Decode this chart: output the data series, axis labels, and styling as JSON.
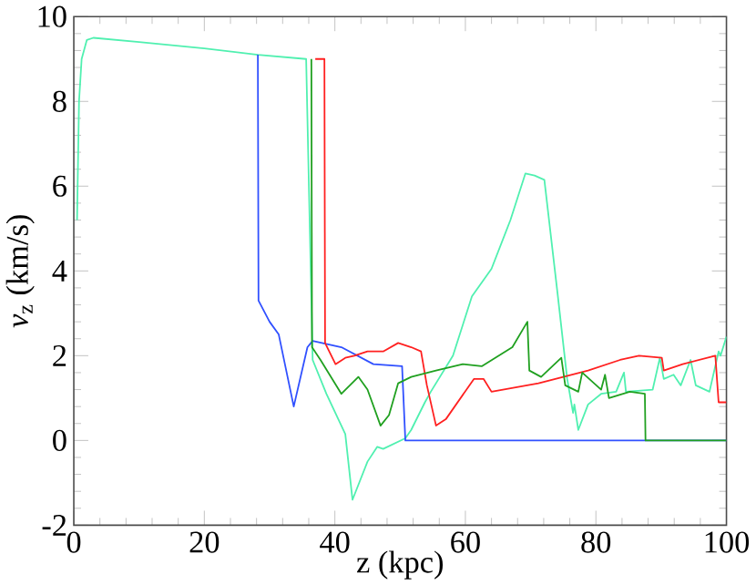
{
  "chart_data": {
    "type": "line",
    "xlabel": "z (kpc)",
    "ylabel": "*v*$_{z}$ (km/s)",
    "xlim": [
      0,
      100
    ],
    "ylim": [
      -2,
      10
    ],
    "xticks": [
      0,
      20,
      40,
      60,
      80,
      100
    ],
    "yticks": [
      -2,
      0,
      2,
      4,
      6,
      8,
      10
    ],
    "grid": false,
    "legend": false,
    "marker": "none",
    "line_style": "solid",
    "series": [
      {
        "color": "#50f0b0",
        "x": [
          0.5,
          0.8,
          1.2,
          2,
          3,
          10,
          20,
          28.2,
          35.6,
          36.6,
          38.7,
          41.6,
          42.7,
          45,
          46.5,
          47.4,
          50.8,
          51.7,
          53.8,
          54.7,
          58.1,
          61,
          64,
          66.9,
          69.2,
          70.6,
          72.1,
          74.1,
          75.6,
          76.5,
          76.7,
          77.3,
          78.8,
          80.8,
          83.1,
          84.3,
          84.6,
          88.7,
          89.8,
          90.4,
          91.9,
          93,
          94.5,
          95.3,
          97.4,
          98.8,
          99.1,
          100
        ],
        "values": [
          5.2,
          8.0,
          9.0,
          9.45,
          9.5,
          9.4,
          9.25,
          9.1,
          9.0,
          1.9,
          1.1,
          0.15,
          -1.4,
          -0.5,
          -0.15,
          -0.2,
          0.05,
          0.25,
          0.9,
          1.15,
          2.0,
          3.4,
          4.05,
          5.2,
          6.3,
          6.25,
          6.15,
          3.5,
          1.45,
          0.65,
          0.85,
          0.25,
          0.85,
          1.1,
          1.15,
          1.6,
          1.15,
          1.2,
          1.95,
          1.45,
          1.55,
          1.3,
          1.9,
          1.3,
          1.15,
          2.1,
          2.0,
          2.45
        ]
      },
      {
        "color": "#3050ff",
        "x": [
          28.2,
          28.3,
          30,
          31.4,
          33.7,
          35.8,
          36.6,
          41,
          45.9,
          50.3,
          50.8,
          100
        ],
        "values": [
          9.1,
          3.3,
          2.8,
          2.5,
          0.8,
          2.2,
          2.35,
          2.2,
          1.8,
          1.75,
          0,
          0
        ]
      },
      {
        "color": "#ff2020",
        "x": [
          37,
          38.4,
          38.5,
          40.1,
          41.6,
          43,
          45,
          47.4,
          49.7,
          51.7,
          53.2,
          54.1,
          55.5,
          57,
          61.3,
          62.8,
          64,
          71.2,
          78.8,
          83.7,
          86.6,
          90.1,
          90.4,
          93.3,
          98.3,
          98.8,
          100
        ],
        "values": [
          9.0,
          9.0,
          2.3,
          1.8,
          1.95,
          2.0,
          2.1,
          2.1,
          2.3,
          2.2,
          2.1,
          1.3,
          0.35,
          0.5,
          1.45,
          1.45,
          1.15,
          1.35,
          1.65,
          1.9,
          2.0,
          1.95,
          1.65,
          1.8,
          2.0,
          0.9,
          0.9
        ]
      },
      {
        "color": "#20a020",
        "x": [
          36.4,
          36.5,
          37.8,
          41,
          43.6,
          45,
          47,
          48.3,
          49.7,
          51.7,
          55.5,
          59.6,
          62.5,
          67.2,
          69.5,
          69.8,
          71.6,
          74.7,
          75.3,
          77.3,
          77.9,
          80.8,
          81.4,
          82,
          85.2,
          87.5,
          87.6,
          100
        ],
        "values": [
          9.0,
          2.2,
          1.9,
          1.1,
          1.5,
          1.2,
          0.35,
          0.6,
          1.35,
          1.5,
          1.65,
          1.8,
          1.75,
          2.2,
          2.8,
          1.65,
          1.5,
          1.95,
          1.3,
          1.15,
          1.6,
          1.2,
          1.55,
          1.0,
          1.15,
          1.1,
          0,
          0
        ]
      }
    ]
  }
}
